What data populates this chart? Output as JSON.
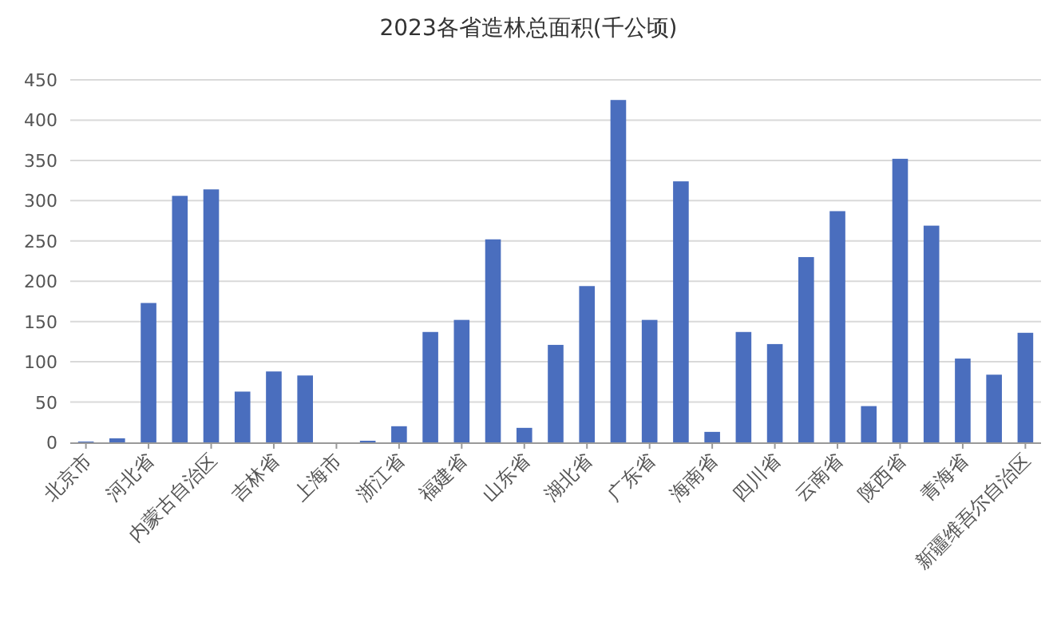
{
  "chart_data": {
    "type": "bar",
    "title": "2023各省造林总面积(千公顷)",
    "categories": [
      "北京市",
      null,
      "河北省",
      null,
      "内蒙古自治区",
      null,
      "吉林省",
      null,
      "上海市",
      null,
      "浙江省",
      null,
      "福建省",
      null,
      "山东省",
      null,
      "湖北省",
      null,
      "广东省",
      null,
      "海南省",
      null,
      "四川省",
      null,
      "云南省",
      null,
      "陕西省",
      null,
      "青海省",
      null,
      "新疆维吾尔自治区"
    ],
    "values": [
      1,
      5,
      173,
      306,
      314,
      63,
      88,
      83,
      0,
      2,
      20,
      137,
      152,
      252,
      18,
      121,
      194,
      425,
      152,
      324,
      13,
      137,
      122,
      230,
      287,
      45,
      352,
      269,
      104,
      84,
      136
    ],
    "color": "#4a6ebe",
    "ylim": [
      0,
      450
    ],
    "yticks": [
      0,
      50,
      100,
      150,
      200,
      250,
      300,
      350,
      400,
      450
    ],
    "grid": "y"
  }
}
